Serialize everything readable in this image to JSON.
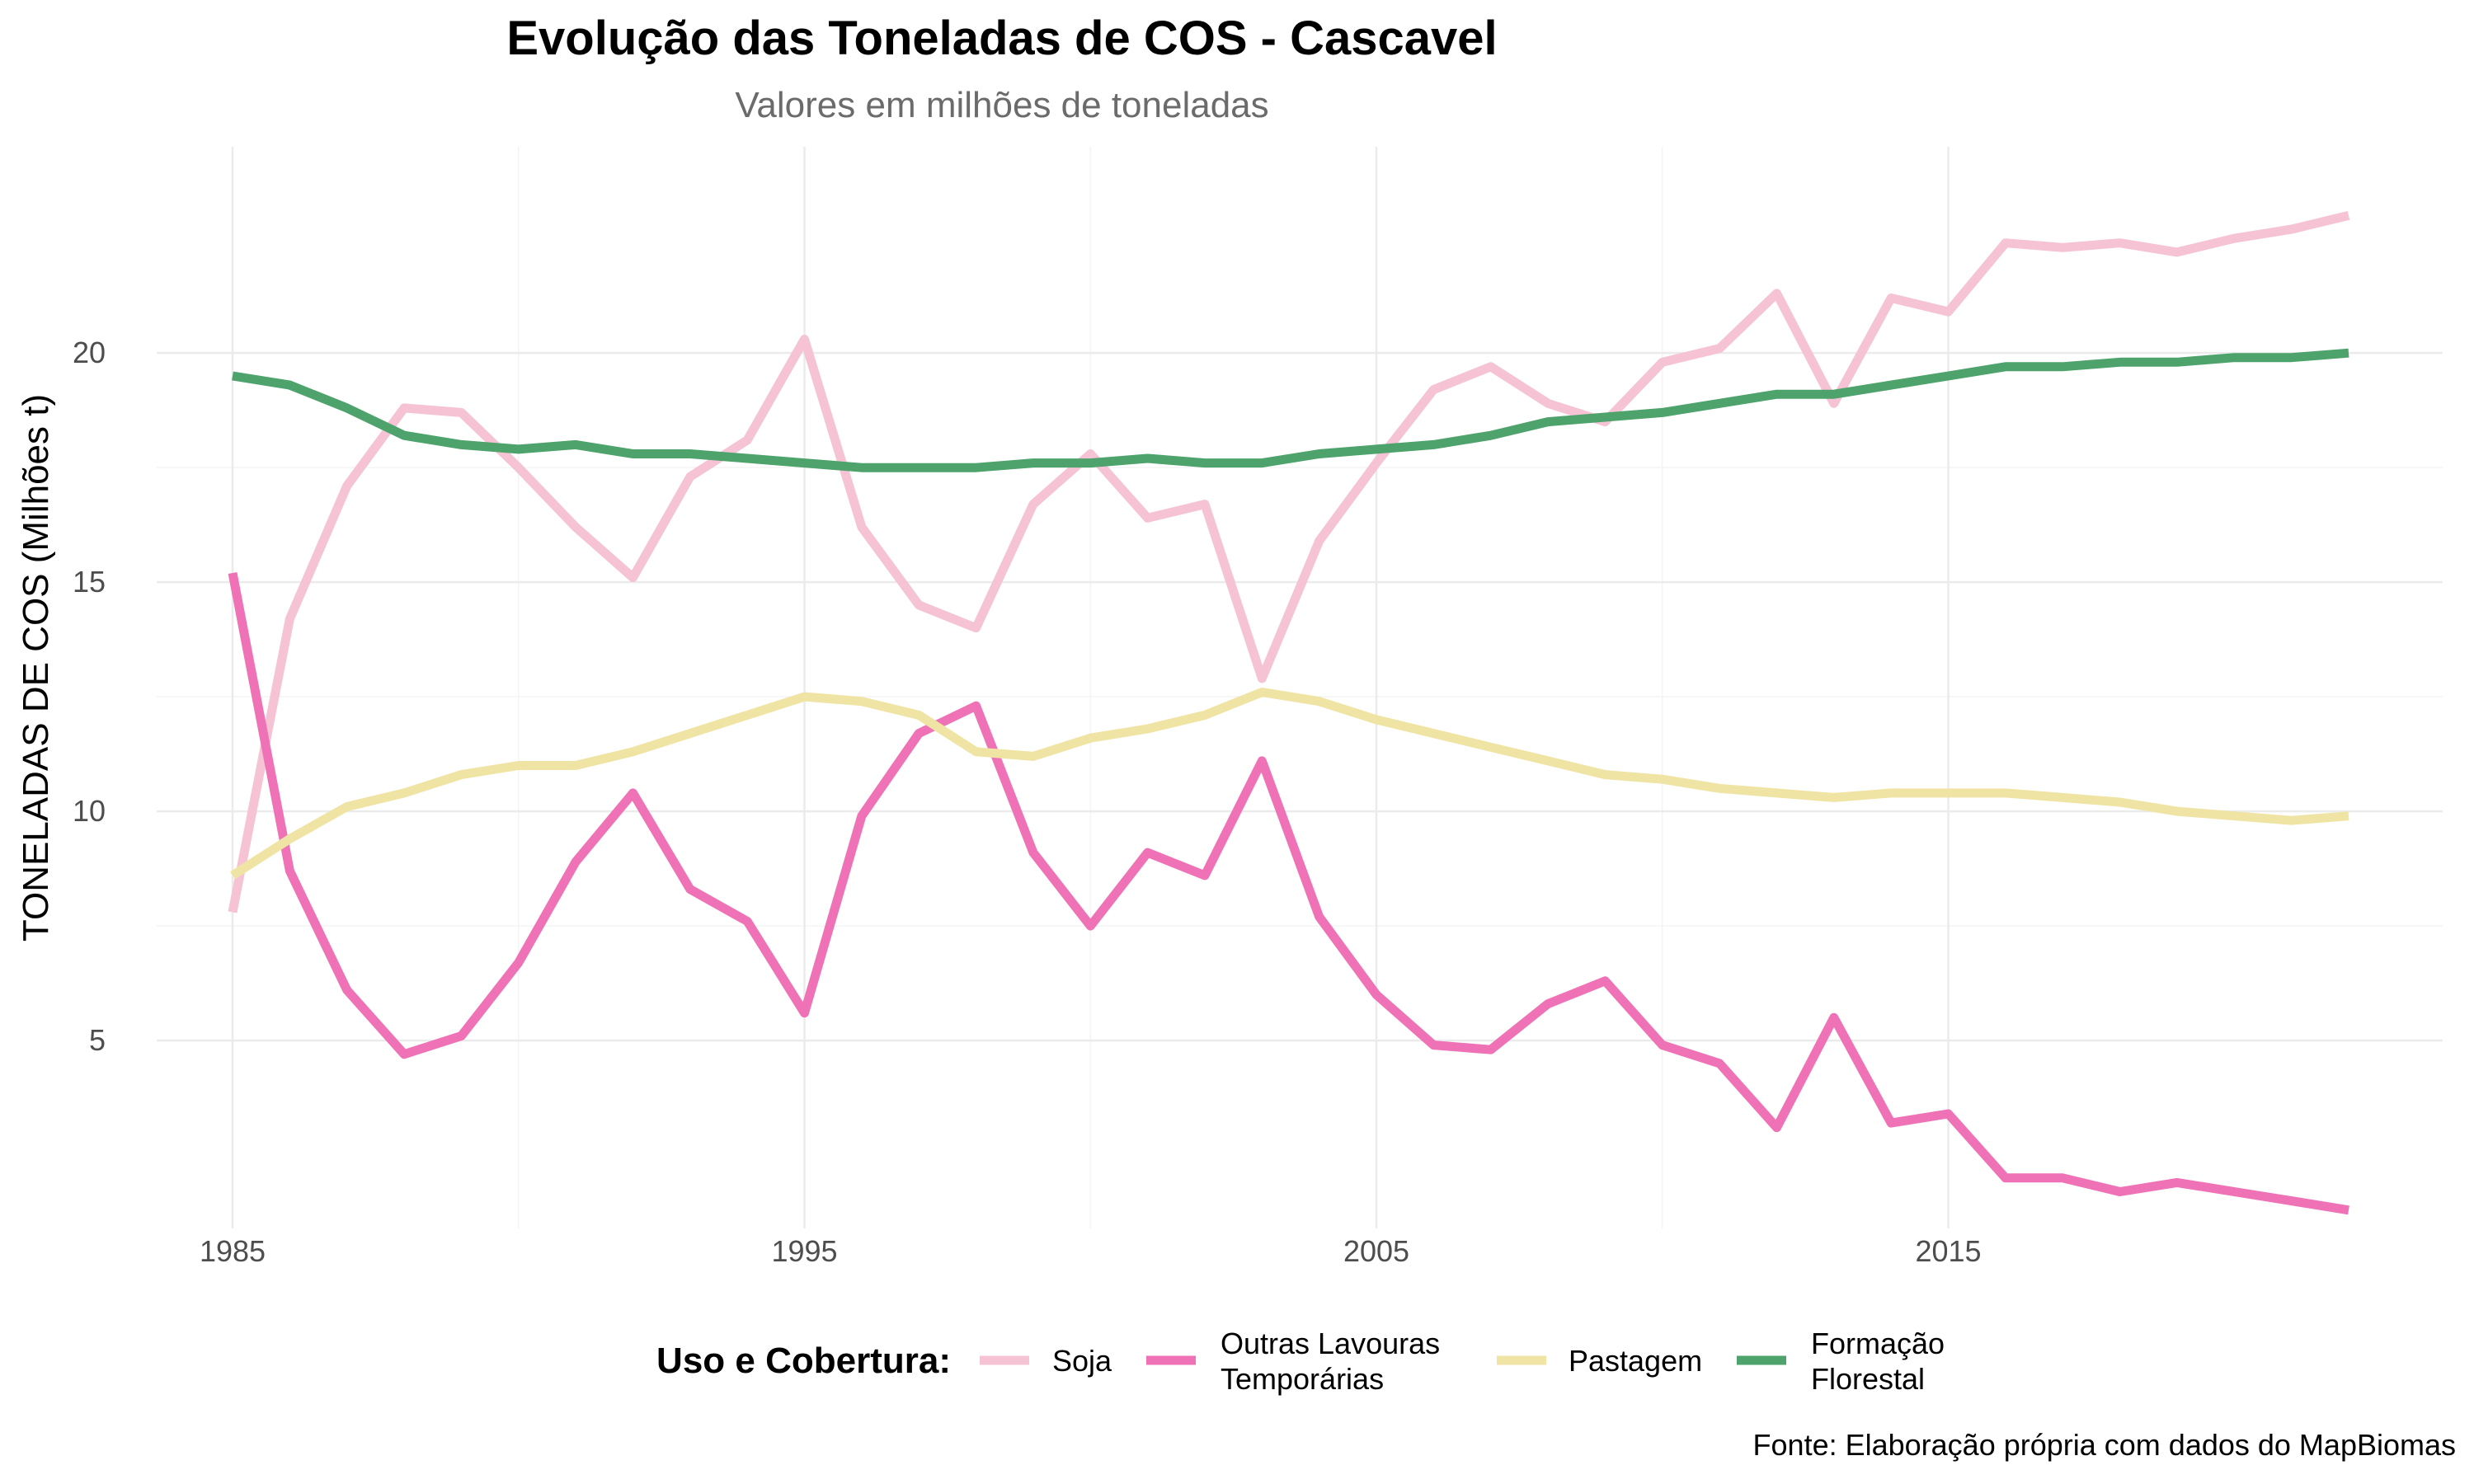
{
  "chart_data": {
    "type": "line",
    "title": "Evolução das Toneladas de COS - Cascavel",
    "subtitle": "Valores em milhões de toneladas",
    "xlabel": "",
    "ylabel": "TONELADAS DE COS (Milhões t)",
    "xlim": [
      1985,
      2022
    ],
    "ylim": [
      0.9,
      24.5
    ],
    "x_ticks": [
      1985,
      1995,
      2005,
      2015
    ],
    "y_ticks": [
      5,
      10,
      15,
      20
    ],
    "grid": true,
    "legend_position": "bottom",
    "legend_title": "Uso e Cobertura:",
    "caption": "Fonte: Elaboração própria com dados do MapBiomas",
    "x": [
      1985,
      1986,
      1987,
      1988,
      1989,
      1990,
      1991,
      1992,
      1993,
      1994,
      1995,
      1996,
      1997,
      1998,
      1999,
      2000,
      2001,
      2002,
      2003,
      2004,
      2005,
      2006,
      2007,
      2008,
      2009,
      2010,
      2011,
      2012,
      2013,
      2014,
      2015,
      2016,
      2017,
      2018,
      2019,
      2020,
      2021,
      2022
    ],
    "series": [
      {
        "name": "Soja",
        "label_lines": [
          "Soja"
        ],
        "color": "#f5c3d4",
        "values": [
          7.8,
          14.2,
          17.1,
          18.8,
          18.7,
          17.5,
          16.2,
          15.1,
          17.3,
          18.1,
          20.3,
          16.2,
          14.5,
          14.0,
          16.7,
          17.8,
          16.4,
          16.7,
          12.9,
          15.9,
          17.6,
          19.2,
          19.7,
          18.9,
          18.5,
          19.8,
          20.1,
          21.3,
          18.9,
          21.2,
          20.9,
          22.4,
          22.3,
          22.4,
          22.2,
          22.5,
          22.7,
          23.0
        ]
      },
      {
        "name": "Outras Lavouras Temporárias",
        "label_lines": [
          "Outras Lavouras",
          "Temporárias"
        ],
        "color": "#f072b6",
        "values": [
          15.2,
          8.7,
          6.1,
          4.7,
          5.1,
          6.7,
          8.9,
          10.4,
          8.3,
          7.6,
          5.6,
          9.9,
          11.7,
          12.3,
          9.1,
          7.5,
          9.1,
          8.6,
          11.1,
          7.7,
          6.0,
          4.9,
          4.8,
          5.8,
          6.3,
          4.9,
          4.5,
          3.1,
          5.5,
          3.2,
          3.4,
          2.0,
          2.0,
          1.7,
          1.9,
          1.7,
          1.5,
          1.3
        ]
      },
      {
        "name": "Pastagem",
        "label_lines": [
          "Pastagem"
        ],
        "color": "#f0e4a4",
        "values": [
          8.6,
          9.4,
          10.1,
          10.4,
          10.8,
          11.0,
          11.0,
          11.3,
          11.7,
          12.1,
          12.5,
          12.4,
          12.1,
          11.3,
          11.2,
          11.6,
          11.8,
          12.1,
          12.6,
          12.4,
          12.0,
          11.7,
          11.4,
          11.1,
          10.8,
          10.7,
          10.5,
          10.4,
          10.3,
          10.4,
          10.4,
          10.4,
          10.3,
          10.2,
          10.0,
          9.9,
          9.8,
          9.9
        ]
      },
      {
        "name": "Formação Florestal",
        "label_lines": [
          "Formação",
          "Florestal"
        ],
        "color": "#4da36b",
        "values": [
          19.5,
          19.3,
          18.8,
          18.2,
          18.0,
          17.9,
          18.0,
          17.8,
          17.8,
          17.7,
          17.6,
          17.5,
          17.5,
          17.5,
          17.6,
          17.6,
          17.7,
          17.6,
          17.6,
          17.8,
          17.9,
          18.0,
          18.2,
          18.5,
          18.6,
          18.7,
          18.9,
          19.1,
          19.1,
          19.3,
          19.5,
          19.7,
          19.7,
          19.8,
          19.8,
          19.9,
          19.9,
          20.0
        ]
      }
    ]
  }
}
